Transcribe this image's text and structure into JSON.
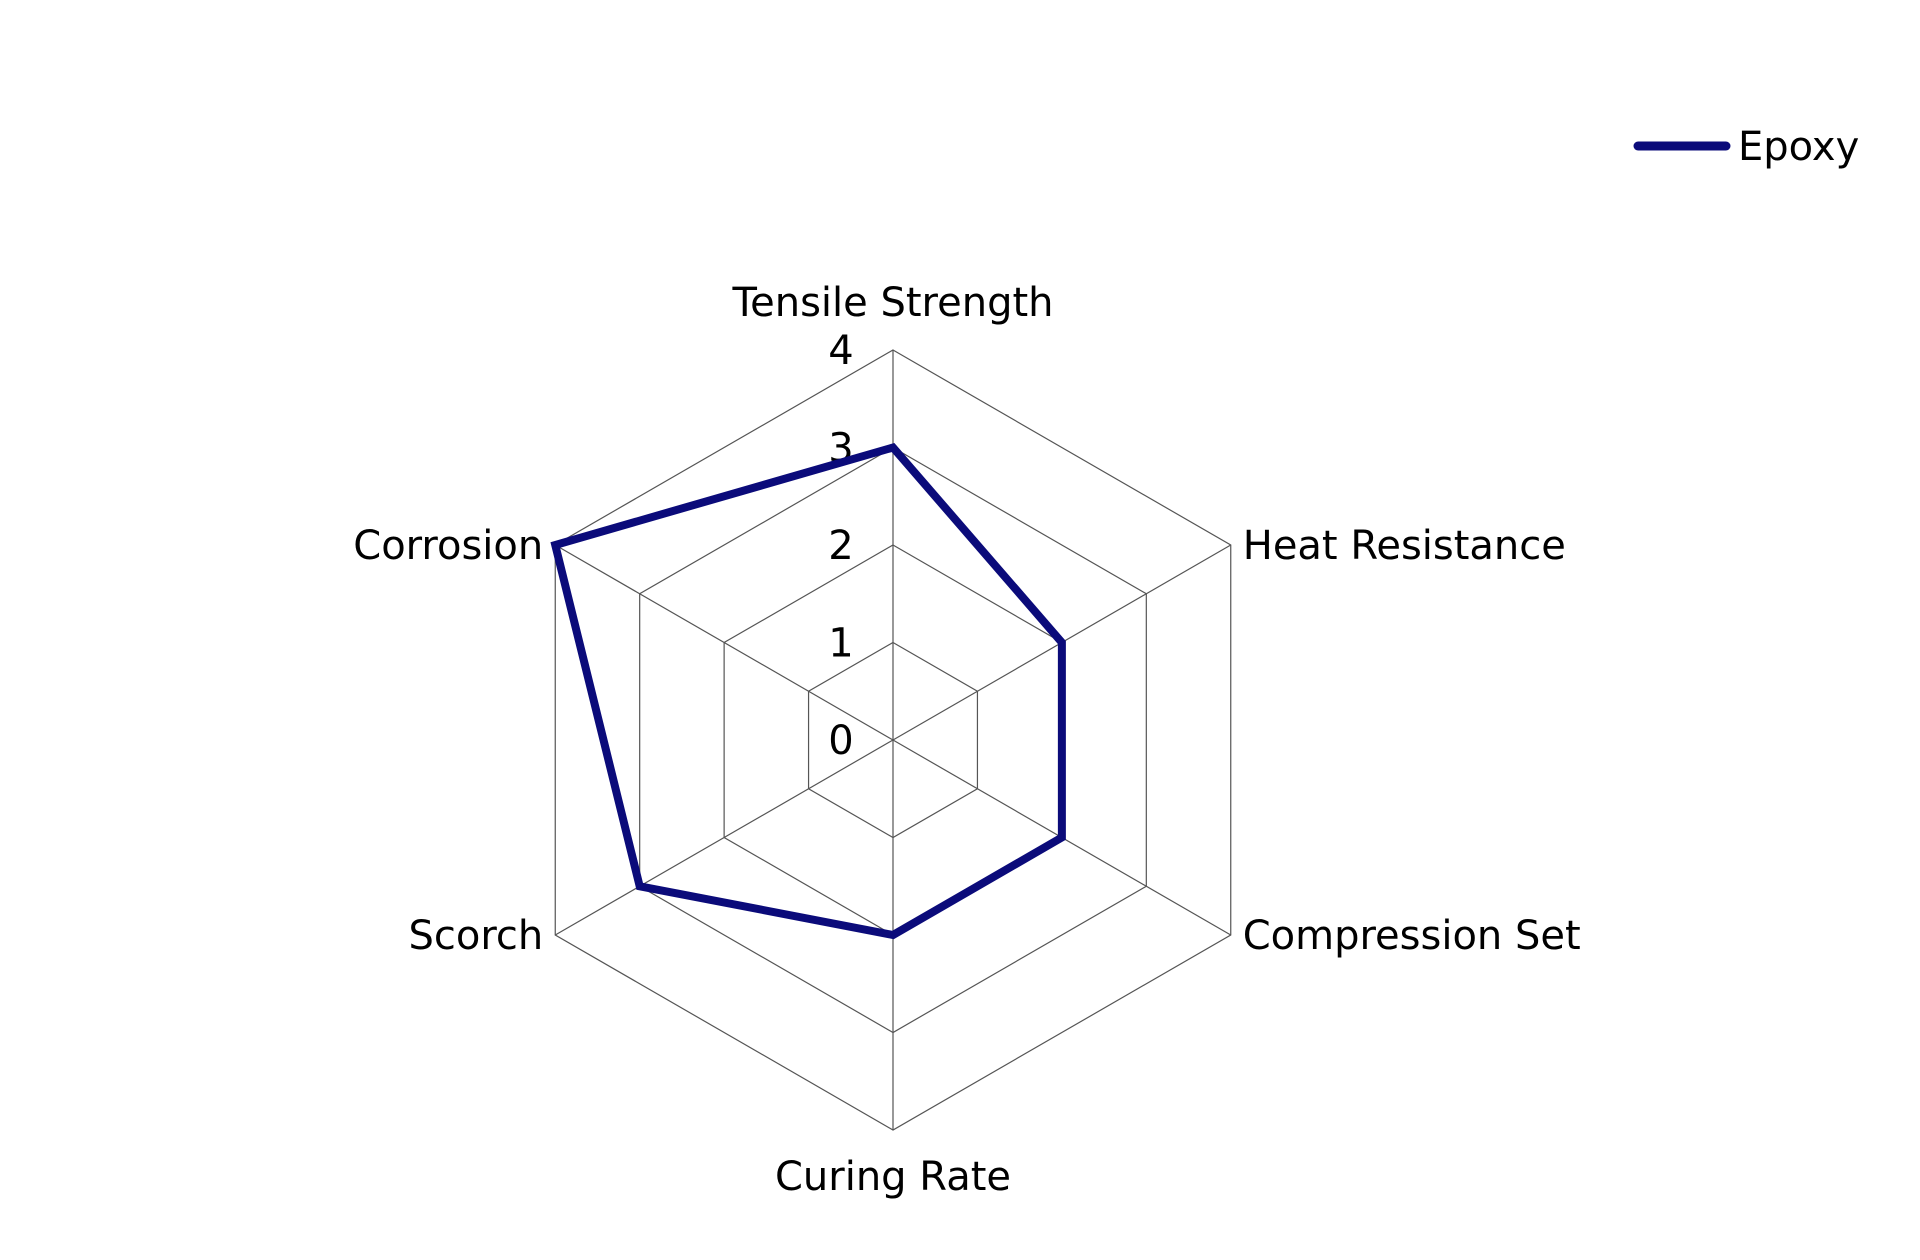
{
  "chart_data": {
    "type": "radar",
    "axes": [
      "Tensile Strength",
      "Heat Resistance",
      "Compression Set",
      "Curing Rate",
      "Scorch",
      "Corrosion"
    ],
    "r_range": [
      0,
      4
    ],
    "r_ticks": [
      "0",
      "1",
      "2",
      "3",
      "4"
    ],
    "series": [
      {
        "name": "Epoxy",
        "values": [
          3,
          2,
          2,
          2,
          3,
          4
        ],
        "color": "#0b0b7a"
      }
    ],
    "legend_position": "top-right",
    "grid": true
  }
}
